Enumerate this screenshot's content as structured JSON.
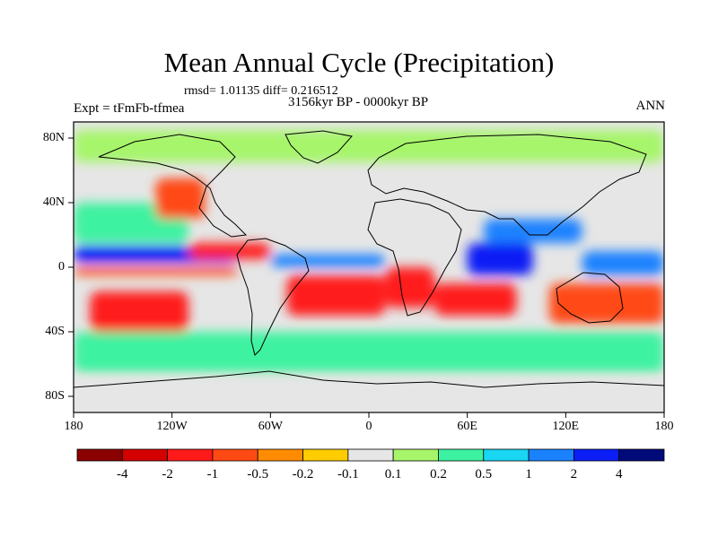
{
  "header": {
    "title": "Mean Annual Cycle (Precipitation)",
    "stats": "rmsd= 1.01135 diff= 0.216512",
    "period": "3156kyr BP - 0000kyr BP",
    "experiment": "Expt = tFmFb-tfmea",
    "season": "ANN"
  },
  "chart_data": {
    "type": "heatmap",
    "title": "Mean Annual Cycle (Precipitation)",
    "subtitle": "3156kyr BP - 0000kyr BP",
    "field": "precipitation difference",
    "xlabel": "",
    "ylabel": "",
    "xlim": [
      -180,
      180
    ],
    "ylim": [
      -90,
      90
    ],
    "x_ticks": [
      {
        "value": -180,
        "label": "180"
      },
      {
        "value": -120,
        "label": "120W"
      },
      {
        "value": -60,
        "label": "60W"
      },
      {
        "value": 0,
        "label": "0"
      },
      {
        "value": 60,
        "label": "60E"
      },
      {
        "value": 120,
        "label": "120E"
      },
      {
        "value": 180,
        "label": "180"
      }
    ],
    "y_ticks": [
      {
        "value": 80,
        "label": "80N"
      },
      {
        "value": 40,
        "label": "40N"
      },
      {
        "value": 0,
        "label": "0"
      },
      {
        "value": -40,
        "label": "40S"
      },
      {
        "value": -80,
        "label": "80S"
      }
    ],
    "colorbar": {
      "levels": [
        "-4",
        "-2",
        "-1",
        "-0.5",
        "-0.2",
        "-0.1",
        "0.1",
        "0.2",
        "0.5",
        "1",
        "2",
        "4"
      ],
      "colors": [
        "#8b0000",
        "#d40000",
        "#ff1a1a",
        "#ff4a14",
        "#ff8c00",
        "#ffcc00",
        "#e6e6e6",
        "#a6f56a",
        "#3cf2a0",
        "#19d6f2",
        "#1a82ff",
        "#0a1ef5",
        "#000a7a"
      ]
    },
    "regions": [
      {
        "name": "north-pacific-band",
        "lon": [
          -180,
          -110
        ],
        "lat": [
          15,
          40
        ],
        "level": 8
      },
      {
        "name": "arctic-band",
        "lon": [
          -180,
          180
        ],
        "lat": [
          65,
          85
        ],
        "level": 7
      },
      {
        "name": "itcz-pacific",
        "lon": [
          -180,
          -80
        ],
        "lat": [
          3,
          13
        ],
        "level": 11
      },
      {
        "name": "itcz-atlantic",
        "lon": [
          -60,
          10
        ],
        "lat": [
          0,
          8
        ],
        "level": 10
      },
      {
        "name": "indian-ocean-wet",
        "lon": [
          60,
          100
        ],
        "lat": [
          -5,
          15
        ],
        "level": 11
      },
      {
        "name": "south-asia-wet",
        "lon": [
          70,
          130
        ],
        "lat": [
          15,
          30
        ],
        "level": 10
      },
      {
        "name": "maritime-continent",
        "lon": [
          130,
          180
        ],
        "lat": [
          -5,
          10
        ],
        "level": 10
      },
      {
        "name": "equatorial-pacific-dry",
        "lon": [
          -180,
          -80
        ],
        "lat": [
          -5,
          0
        ],
        "level": 3
      },
      {
        "name": "south-pacific-dry",
        "lon": [
          -170,
          -110
        ],
        "lat": [
          -40,
          -15
        ],
        "level": 2
      },
      {
        "name": "south-atlantic-dry",
        "lon": [
          -50,
          10
        ],
        "lat": [
          -30,
          -5
        ],
        "level": 2
      },
      {
        "name": "southern-africa-dry",
        "lon": [
          10,
          40
        ],
        "lat": [
          -25,
          0
        ],
        "level": 2
      },
      {
        "name": "indian-ocean-dry",
        "lon": [
          40,
          90
        ],
        "lat": [
          -30,
          -10
        ],
        "level": 2
      },
      {
        "name": "australia-dry",
        "lon": [
          110,
          180
        ],
        "lat": [
          -35,
          -10
        ],
        "level": 3
      },
      {
        "name": "central-america-dry",
        "lon": [
          -110,
          -60
        ],
        "lat": [
          5,
          15
        ],
        "level": 2
      },
      {
        "name": "north-america-dry",
        "lon": [
          -130,
          -100
        ],
        "lat": [
          30,
          55
        ],
        "level": 3
      },
      {
        "name": "southern-ocean-wet",
        "lon": [
          -180,
          180
        ],
        "lat": [
          -65,
          -40
        ],
        "level": 8
      },
      {
        "name": "antarctica-neutral",
        "lon": [
          -180,
          180
        ],
        "lat": [
          -90,
          -70
        ],
        "level": 6
      }
    ]
  }
}
